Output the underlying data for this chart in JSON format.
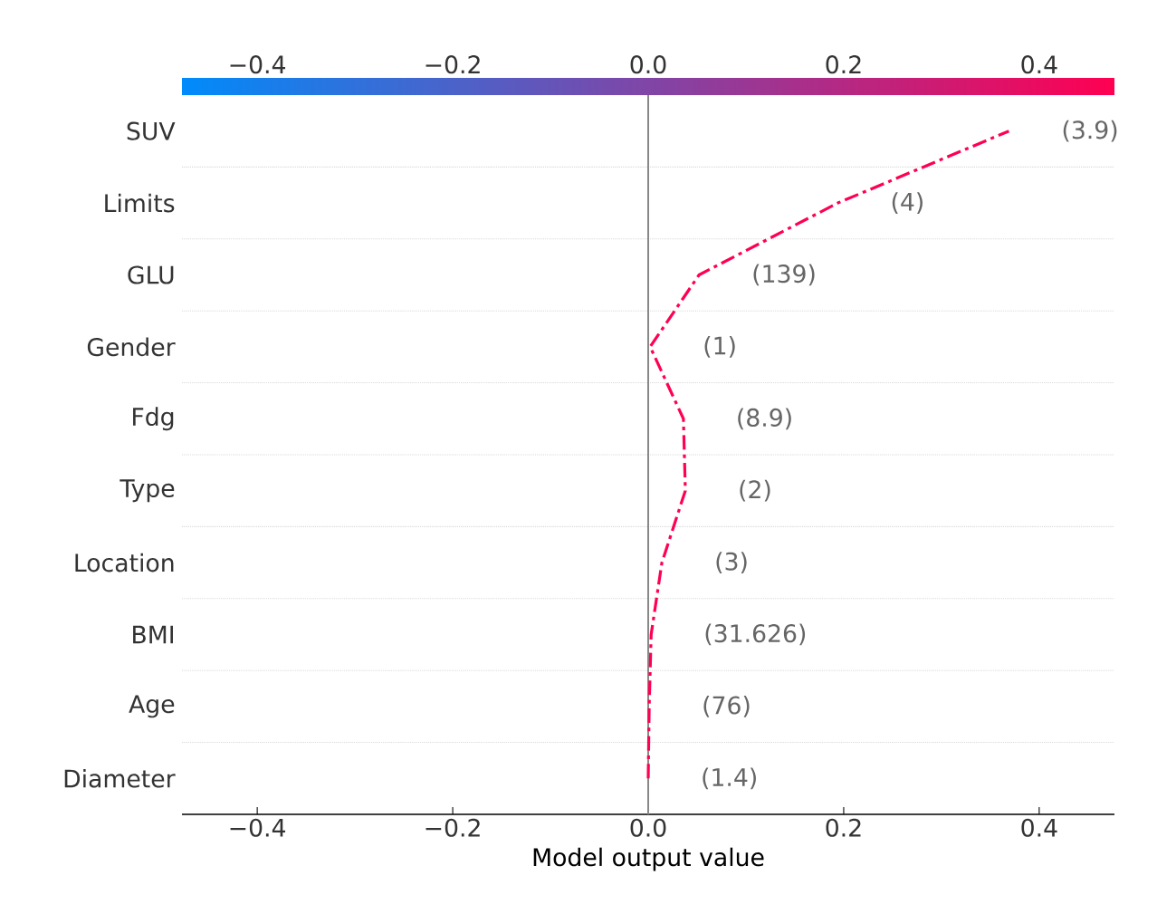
{
  "chart_data": {
    "type": "line",
    "orientation": "horizontal",
    "xlabel": "Model output value",
    "categories": [
      "SUV",
      "Limits",
      "GLU",
      "Gender",
      "Fdg",
      "Type",
      "Location",
      "BMI",
      "Age",
      "Diameter"
    ],
    "series": [
      {
        "color": "#ff0052",
        "line_style": "dashdot",
        "values": [
          0.369,
          0.194,
          0.052,
          0.002,
          0.036,
          0.038,
          0.014,
          0.003,
          0.001,
          0.0
        ]
      }
    ],
    "xlim": [
      -0.477,
      0.477
    ],
    "xticks": [
      {
        "value": -0.4,
        "label": "−0.4"
      },
      {
        "value": -0.2,
        "label": "−0.2"
      },
      {
        "value": 0,
        "label": "0.0"
      },
      {
        "value": 0.2,
        "label": "0.2"
      },
      {
        "value": 0.4,
        "label": "0.4"
      }
    ],
    "x2lim": [
      -0.477,
      0.477
    ],
    "x2ticks": [
      {
        "value": -0.4,
        "label": "−0.4"
      },
      {
        "value": -0.2,
        "label": "−0.2"
      },
      {
        "value": 0,
        "label": "0.0"
      },
      {
        "value": 0.2,
        "label": "0.2"
      },
      {
        "value": 0.4,
        "label": "0.4"
      }
    ],
    "grid": "y",
    "ref_lines": [
      {
        "axis": "x",
        "value": 0,
        "color": "#888888"
      }
    ],
    "annotations": [
      "(3.9)",
      "(4)",
      "(139)",
      "(1)",
      "(8.9)",
      "(2)",
      "(3)",
      "(31.626)",
      "(76)",
      "(1.4)"
    ]
  }
}
